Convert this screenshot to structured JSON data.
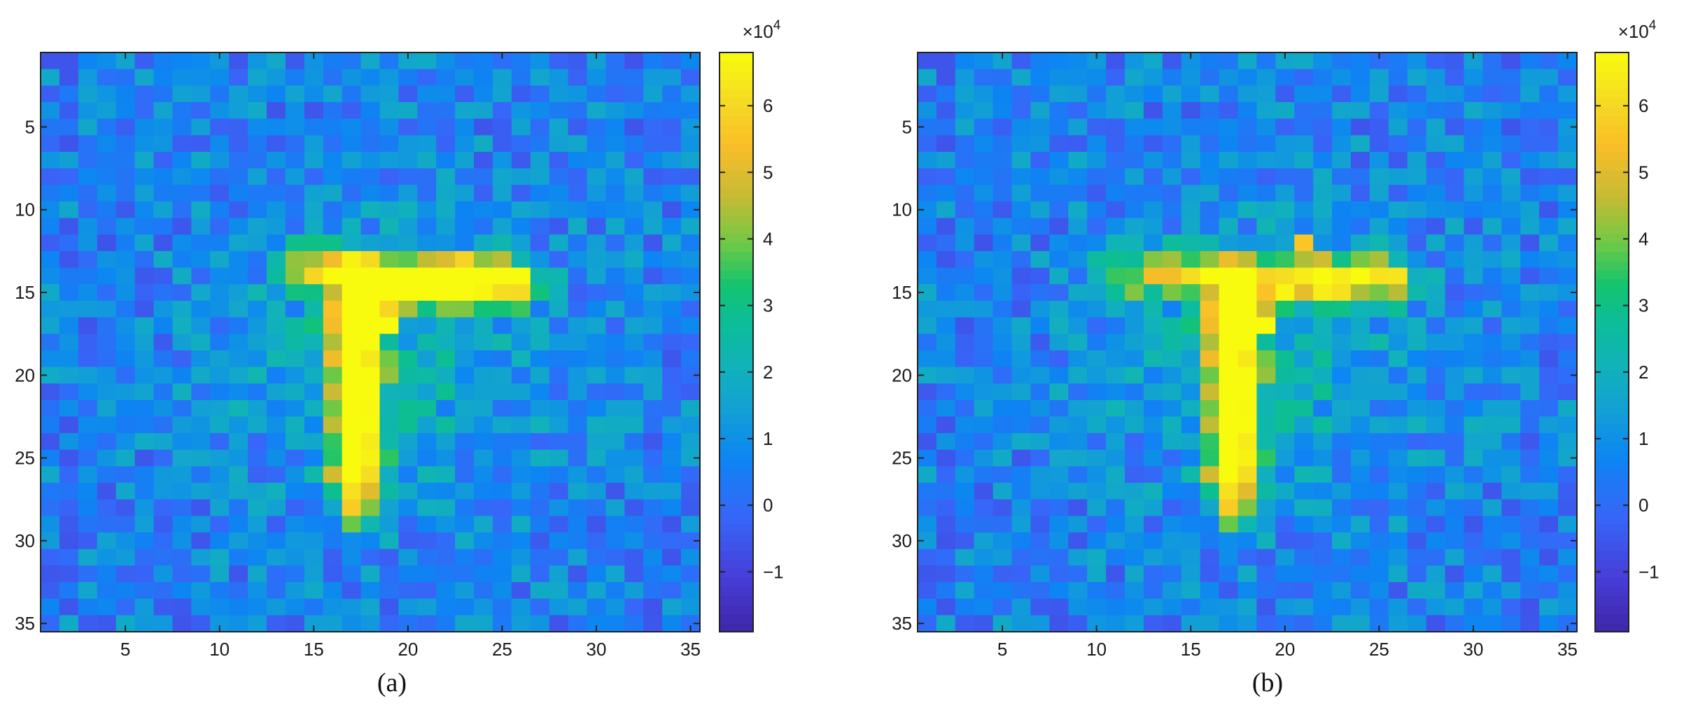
{
  "chart_data": [
    {
      "type": "heatmap",
      "caption": "(a)",
      "rows": 35,
      "cols": 35,
      "xticks": [
        5,
        10,
        15,
        20,
        25,
        30,
        35
      ],
      "yticks": [
        5,
        10,
        15,
        20,
        25,
        30,
        35
      ],
      "colorbar": {
        "multiplier": "×10",
        "exponent": "4",
        "ticks": [
          {
            "value": -1,
            "label": "−1"
          },
          {
            "value": 0,
            "label": "0"
          },
          {
            "value": 1,
            "label": "1"
          },
          {
            "value": 2,
            "label": "2"
          },
          {
            "value": 3,
            "label": "3"
          },
          {
            "value": 4,
            "label": "4"
          },
          {
            "value": 5,
            "label": "5"
          },
          {
            "value": 6,
            "label": "6"
          }
        ],
        "range": [
          -1.9,
          6.8
        ]
      },
      "colormap": "parula",
      "hotspots_x1e4": [
        {
          "row": 14,
          "col": 24,
          "value": 6.8
        },
        {
          "row": 17,
          "col": 19,
          "value": 6.8
        },
        {
          "row": 24,
          "col": 17,
          "value": 6.7
        },
        {
          "row": 15,
          "col": 22,
          "value": 6.2
        },
        {
          "row": 13,
          "col": 23,
          "value": 5.9
        },
        {
          "row": 26,
          "col": 18,
          "value": 6.0
        },
        {
          "row": 22,
          "col": 17,
          "value": 5.8
        }
      ]
    },
    {
      "type": "heatmap",
      "caption": "(b)",
      "rows": 35,
      "cols": 35,
      "xticks": [
        5,
        10,
        15,
        20,
        25,
        30,
        35
      ],
      "yticks": [
        5,
        10,
        15,
        20,
        25,
        30,
        35
      ],
      "colorbar": {
        "multiplier": "×10",
        "exponent": "4",
        "ticks": [
          {
            "value": -1,
            "label": "−1"
          },
          {
            "value": 0,
            "label": "0"
          },
          {
            "value": 1,
            "label": "1"
          },
          {
            "value": 2,
            "label": "2"
          },
          {
            "value": 3,
            "label": "3"
          },
          {
            "value": 4,
            "label": "4"
          },
          {
            "value": 5,
            "label": "5"
          },
          {
            "value": 6,
            "label": "6"
          }
        ],
        "range": [
          -1.9,
          6.8
        ]
      },
      "colormap": "parula",
      "hotspots_x1e4": [
        {
          "row": 14,
          "col": 24,
          "value": 6.8
        },
        {
          "row": 17,
          "col": 19,
          "value": 6.8
        },
        {
          "row": 15,
          "col": 23,
          "value": 6.2
        },
        {
          "row": 24,
          "col": 17,
          "value": 5.8
        },
        {
          "row": 12,
          "col": 21,
          "value": 5.6
        },
        {
          "row": 26,
          "col": 18,
          "value": 5.7
        }
      ]
    }
  ]
}
